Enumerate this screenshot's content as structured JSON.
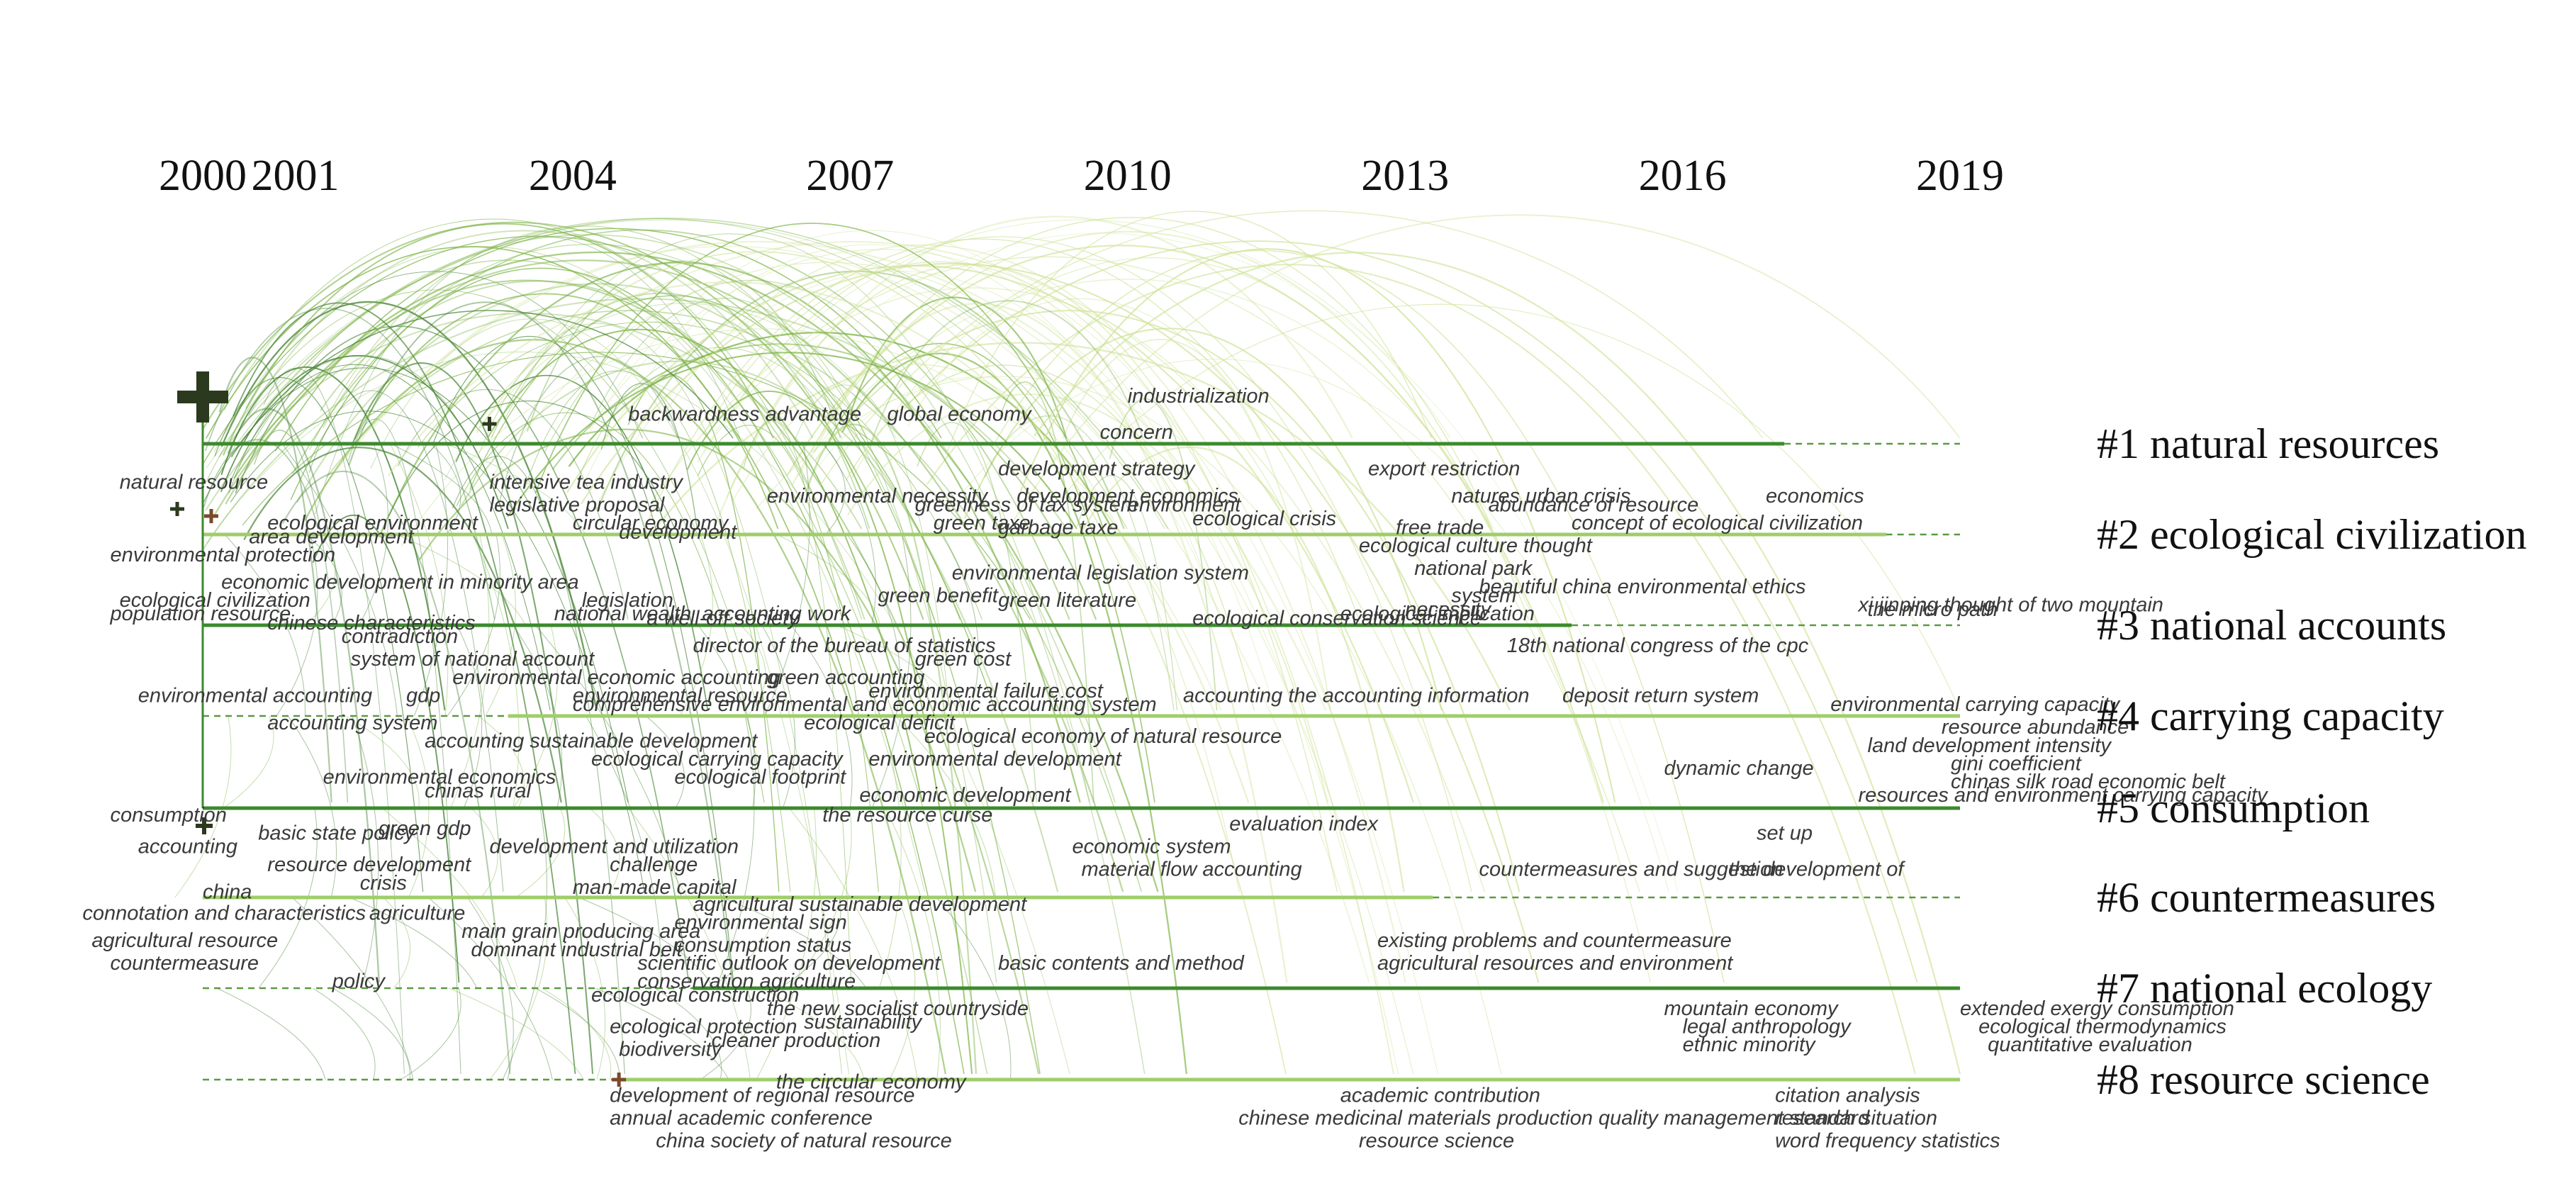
{
  "chart_data": {
    "type": "timeline",
    "years": [
      2000,
      2001,
      2004,
      2007,
      2010,
      2013,
      2016,
      2019
    ],
    "x_range": [
      2000,
      2019
    ],
    "colors": {
      "arc_dark": "#3f7f2c",
      "arc_mid": "#7fb54a",
      "arc_light": "#cfe39a",
      "lane_dark": "#3c8a2e",
      "lane_light": "#9fce6a",
      "dashed": "#5a9a42",
      "node_dark": "#2b3a1e",
      "node_brown": "#7a4a2a"
    },
    "clusters": [
      {
        "id": 1,
        "label": "#1 natural resources",
        "start": 2000,
        "end": 2017.1,
        "extend_to": 2019
      },
      {
        "id": 2,
        "label": "#2 ecological civilization",
        "start": 2000,
        "end": 2018.2,
        "extend_to": 2019
      },
      {
        "id": 3,
        "label": "#3 national accounts",
        "start": 2000,
        "end": 2014.8,
        "extend_to": 2019
      },
      {
        "id": 4,
        "label": "#4 carrying capacity",
        "start": 2003.3,
        "end": 2019,
        "extend_to": 2019,
        "dashed_before": true
      },
      {
        "id": 5,
        "label": "#5 consumption",
        "start": 2000,
        "end": 2019,
        "extend_to": 2019
      },
      {
        "id": 6,
        "label": "#6 countermeasures",
        "start": 2000,
        "end": 2013.3,
        "extend_to": 2019
      },
      {
        "id": 7,
        "label": "#7 national ecology",
        "start": 2005.3,
        "end": 2019,
        "extend_to": 2019,
        "dashed_before": true
      },
      {
        "id": 8,
        "label": "#8 resource science",
        "start": 2004.5,
        "end": 2019,
        "extend_to": 2019,
        "dashed_before": true
      }
    ],
    "keywords": [
      {
        "text": "backwardness advantage",
        "year": 2004.6,
        "lane": 1,
        "dy": -0.6
      },
      {
        "text": "global economy",
        "year": 2007.4,
        "lane": 1,
        "dy": -0.6
      },
      {
        "text": "industrialization",
        "year": 2010.0,
        "lane": 1,
        "dy": -1.0
      },
      {
        "text": "concern",
        "year": 2009.7,
        "lane": 1,
        "dy": -0.2
      },
      {
        "text": "natural resource",
        "year": 1999.1,
        "lane": 1,
        "dy": 0.9
      },
      {
        "text": "intensive tea industry",
        "year": 2003.1,
        "lane": 1,
        "dy": 0.9
      },
      {
        "text": "development strategy",
        "year": 2008.6,
        "lane": 1,
        "dy": 0.6
      },
      {
        "text": "export restriction",
        "year": 2012.6,
        "lane": 1,
        "dy": 0.6
      },
      {
        "text": "legislative proposal",
        "year": 2003.1,
        "lane": 1,
        "dy": 1.4
      },
      {
        "text": "greenness of tax system",
        "year": 2007.7,
        "lane": 1,
        "dy": 1.4
      },
      {
        "text": "environment",
        "year": 2010.0,
        "lane": 1,
        "dy": 1.4
      },
      {
        "text": "abundance of resource",
        "year": 2013.9,
        "lane": 1,
        "dy": 1.4
      },
      {
        "text": "ecological environment",
        "year": 2000.7,
        "lane": 1,
        "dy": 1.8
      },
      {
        "text": "development",
        "year": 2004.5,
        "lane": 1,
        "dy": 2.0
      },
      {
        "text": "garbage taxe",
        "year": 2008.6,
        "lane": 1,
        "dy": 1.9
      },
      {
        "text": "free trade",
        "year": 2012.9,
        "lane": 1,
        "dy": 1.9
      },
      {
        "text": "environmental necessity",
        "year": 2006.1,
        "lane": 2,
        "dy": -0.8
      },
      {
        "text": "development economics",
        "year": 2008.8,
        "lane": 2,
        "dy": -0.8
      },
      {
        "text": "natures urban crisis",
        "year": 2013.5,
        "lane": 2,
        "dy": -0.8
      },
      {
        "text": "economics",
        "year": 2016.9,
        "lane": 2,
        "dy": -0.8
      },
      {
        "text": "circular economy",
        "year": 2004.0,
        "lane": 2,
        "dy": -0.2
      },
      {
        "text": "green taxe",
        "year": 2007.9,
        "lane": 2,
        "dy": -0.2
      },
      {
        "text": "ecological crisis",
        "year": 2010.7,
        "lane": 2,
        "dy": -0.3
      },
      {
        "text": "concept of ecological civilization",
        "year": 2014.8,
        "lane": 2,
        "dy": -0.2
      },
      {
        "text": "area development",
        "year": 2000.5,
        "lane": 2,
        "dy": 0.1
      },
      {
        "text": "ecological culture thought",
        "year": 2012.5,
        "lane": 2,
        "dy": 0.3
      },
      {
        "text": "environmental protection",
        "year": 1999.0,
        "lane": 2,
        "dy": 0.5
      },
      {
        "text": "environmental legislation system",
        "year": 2008.1,
        "lane": 2,
        "dy": 0.9
      },
      {
        "text": "national park",
        "year": 2013.1,
        "lane": 2,
        "dy": 0.8
      },
      {
        "text": "economic development in minority area",
        "year": 2000.2,
        "lane": 2,
        "dy": 1.1
      },
      {
        "text": "beautiful china environmental ethics",
        "year": 2013.8,
        "lane": 2,
        "dy": 1.2
      },
      {
        "text": "ecological civilization",
        "year": 1999.1,
        "lane": 2,
        "dy": 1.5
      },
      {
        "text": "legislation",
        "year": 2004.1,
        "lane": 2,
        "dy": 1.5
      },
      {
        "text": "green literature",
        "year": 2008.6,
        "lane": 2,
        "dy": 1.5
      },
      {
        "text": "necessity",
        "year": 2013.0,
        "lane": 2,
        "dy": 1.7
      },
      {
        "text": "xi jinping thought of two mountain",
        "year": 2017.9,
        "lane": 2,
        "dy": 1.6
      },
      {
        "text": "chinese characteristics",
        "year": 2000.7,
        "lane": 2,
        "dy": 2.0
      },
      {
        "text": "a well-off society",
        "year": 2004.8,
        "lane": 2,
        "dy": 1.9
      },
      {
        "text": "ecological conservation science",
        "year": 2010.7,
        "lane": 2,
        "dy": 1.9
      },
      {
        "text": "green benefit",
        "year": 2007.3,
        "lane": 3,
        "dy": -0.6
      },
      {
        "text": "system",
        "year": 2013.5,
        "lane": 3,
        "dy": -0.6
      },
      {
        "text": "population resource",
        "year": 1999.0,
        "lane": 3,
        "dy": -0.2
      },
      {
        "text": "national wealth",
        "year": 2003.8,
        "lane": 3,
        "dy": -0.2
      },
      {
        "text": "accounting work",
        "year": 2005.4,
        "lane": 3,
        "dy": -0.2
      },
      {
        "text": "ecological implication",
        "year": 2012.3,
        "lane": 3,
        "dy": -0.2
      },
      {
        "text": "the micro path",
        "year": 2018.0,
        "lane": 3,
        "dy": -0.3
      },
      {
        "text": "contradiction",
        "year": 2001.5,
        "lane": 3,
        "dy": 0.3
      },
      {
        "text": "director of the bureau of statistics",
        "year": 2005.3,
        "lane": 3,
        "dy": 0.5
      },
      {
        "text": "18th national congress of the cpc",
        "year": 2014.1,
        "lane": 3,
        "dy": 0.5
      },
      {
        "text": "system of national account",
        "year": 2001.6,
        "lane": 3,
        "dy": 0.8
      },
      {
        "text": "green cost",
        "year": 2007.7,
        "lane": 3,
        "dy": 0.8
      },
      {
        "text": "environmental economic accounting",
        "year": 2002.7,
        "lane": 3,
        "dy": 1.2
      },
      {
        "text": "green accounting",
        "year": 2006.1,
        "lane": 3,
        "dy": 1.2
      },
      {
        "text": "environmental accounting",
        "year": 1999.3,
        "lane": 3,
        "dy": 1.6
      },
      {
        "text": "gdp",
        "year": 2002.2,
        "lane": 3,
        "dy": 1.6
      },
      {
        "text": "environmental resource",
        "year": 2004.0,
        "lane": 3,
        "dy": 1.6
      },
      {
        "text": "environmental failure cost",
        "year": 2007.2,
        "lane": 3,
        "dy": 1.5
      },
      {
        "text": "comprehensive environmental and economic accounting system",
        "year": 2004.0,
        "lane": 4,
        "dy": -0.2
      },
      {
        "text": "accounting the accounting information",
        "year": 2010.6,
        "lane": 4,
        "dy": -0.4
      },
      {
        "text": "deposit return system",
        "year": 2014.7,
        "lane": 4,
        "dy": -0.4
      },
      {
        "text": "environmental carrying capacity",
        "year": 2017.6,
        "lane": 4,
        "dy": -0.2
      },
      {
        "text": "accounting system",
        "year": 2000.7,
        "lane": 4,
        "dy": 0.2
      },
      {
        "text": "ecological deficit",
        "year": 2006.5,
        "lane": 4,
        "dy": 0.2
      },
      {
        "text": "resource abundance",
        "year": 2018.8,
        "lane": 4,
        "dy": 0.3
      },
      {
        "text": "accounting sustainable development",
        "year": 2002.4,
        "lane": 4,
        "dy": 0.6
      },
      {
        "text": "ecological economy of natural resource",
        "year": 2007.8,
        "lane": 4,
        "dy": 0.5
      },
      {
        "text": "land development intensity",
        "year": 2018.0,
        "lane": 4,
        "dy": 0.7
      },
      {
        "text": "ecological carrying capacity",
        "year": 2004.2,
        "lane": 4,
        "dy": 1.0
      },
      {
        "text": "environmental development",
        "year": 2007.2,
        "lane": 4,
        "dy": 1.0
      },
      {
        "text": "gini coefficient",
        "year": 2018.9,
        "lane": 4,
        "dy": 1.1
      },
      {
        "text": "environmental economics",
        "year": 2001.3,
        "lane": 4,
        "dy": 1.4
      },
      {
        "text": "ecological footprint",
        "year": 2005.1,
        "lane": 4,
        "dy": 1.4
      },
      {
        "text": "dynamic change",
        "year": 2015.8,
        "lane": 4,
        "dy": 1.2
      },
      {
        "text": "chinas silk road economic belt",
        "year": 2018.9,
        "lane": 4,
        "dy": 1.5
      },
      {
        "text": "chinas rural",
        "year": 2002.4,
        "lane": 4,
        "dy": 1.7
      },
      {
        "text": "economic development",
        "year": 2007.1,
        "lane": 4,
        "dy": 1.8
      },
      {
        "text": "resources and environment carrying capacity",
        "year": 2017.9,
        "lane": 4,
        "dy": 1.8
      },
      {
        "text": "consumption",
        "year": 1999.0,
        "lane": 5,
        "dy": 0.2
      },
      {
        "text": "the resource curse",
        "year": 2006.7,
        "lane": 5,
        "dy": 0.2
      },
      {
        "text": "evaluation index",
        "year": 2011.1,
        "lane": 5,
        "dy": 0.4
      },
      {
        "text": "basic state policy",
        "year": 2000.6,
        "lane": 5,
        "dy": 0.6
      },
      {
        "text": "green gdp",
        "year": 2001.9,
        "lane": 5,
        "dy": 0.5
      },
      {
        "text": "set up",
        "year": 2016.8,
        "lane": 5,
        "dy": 0.6
      },
      {
        "text": "accounting",
        "year": 1999.3,
        "lane": 5,
        "dy": 0.9
      },
      {
        "text": "development and utilization",
        "year": 2003.1,
        "lane": 5,
        "dy": 0.9
      },
      {
        "text": "economic system",
        "year": 2009.4,
        "lane": 5,
        "dy": 0.9
      },
      {
        "text": "resource development",
        "year": 2000.7,
        "lane": 5,
        "dy": 1.3
      },
      {
        "text": "challenge",
        "year": 2004.4,
        "lane": 5,
        "dy": 1.3
      },
      {
        "text": "material flow accounting",
        "year": 2009.5,
        "lane": 5,
        "dy": 1.4
      },
      {
        "text": "countermeasures and suggestion",
        "year": 2013.8,
        "lane": 5,
        "dy": 1.4
      },
      {
        "text": "the development of",
        "year": 2016.5,
        "lane": 5,
        "dy": 1.4
      },
      {
        "text": "crisis",
        "year": 2001.7,
        "lane": 5,
        "dy": 1.7
      },
      {
        "text": "man-made capital",
        "year": 2004.0,
        "lane": 5,
        "dy": 1.8
      },
      {
        "text": "china",
        "year": 2000.0,
        "lane": 5,
        "dy": 1.9
      },
      {
        "text": "agricultural sustainable development",
        "year": 2005.3,
        "lane": 6,
        "dy": 0.2
      },
      {
        "text": "connotation and characteristics",
        "year": 1998.7,
        "lane": 6,
        "dy": 0.4
      },
      {
        "text": "agriculture",
        "year": 2001.8,
        "lane": 6,
        "dy": 0.4
      },
      {
        "text": "environmental sign",
        "year": 2005.1,
        "lane": 6,
        "dy": 0.6
      },
      {
        "text": "main grain producing area",
        "year": 2002.8,
        "lane": 6,
        "dy": 0.8
      },
      {
        "text": "agricultural resource",
        "year": 1998.8,
        "lane": 6,
        "dy": 1.0
      },
      {
        "text": "existing problems and countermeasure",
        "year": 2012.7,
        "lane": 6,
        "dy": 1.0
      },
      {
        "text": "consumption status",
        "year": 2005.1,
        "lane": 6,
        "dy": 1.1
      },
      {
        "text": "dominant industrial belt",
        "year": 2002.9,
        "lane": 6,
        "dy": 1.2
      },
      {
        "text": "countermeasure",
        "year": 1999.0,
        "lane": 6,
        "dy": 1.5
      },
      {
        "text": "scientific outlook on development",
        "year": 2004.7,
        "lane": 6,
        "dy": 1.5
      },
      {
        "text": "basic contents and method",
        "year": 2008.6,
        "lane": 6,
        "dy": 1.5
      },
      {
        "text": "agricultural resources and environment",
        "year": 2012.7,
        "lane": 6,
        "dy": 1.5
      },
      {
        "text": "policy",
        "year": 2001.4,
        "lane": 6,
        "dy": 1.9
      },
      {
        "text": "conservation agriculture",
        "year": 2004.7,
        "lane": 6,
        "dy": 1.9
      },
      {
        "text": "ecological construction",
        "year": 2004.2,
        "lane": 7,
        "dy": 0.2
      },
      {
        "text": "the new socialist countryside",
        "year": 2006.1,
        "lane": 7,
        "dy": 0.5
      },
      {
        "text": "mountain economy",
        "year": 2015.8,
        "lane": 7,
        "dy": 0.5
      },
      {
        "text": "extended exergy consumption",
        "year": 2019.0,
        "lane": 7,
        "dy": 0.5
      },
      {
        "text": "ecological protection",
        "year": 2004.4,
        "lane": 7,
        "dy": 0.9
      },
      {
        "text": "sustainability",
        "year": 2006.5,
        "lane": 7,
        "dy": 0.8
      },
      {
        "text": "legal anthropology",
        "year": 2016.0,
        "lane": 7,
        "dy": 0.9
      },
      {
        "text": "ecological thermodynamics",
        "year": 2019.2,
        "lane": 7,
        "dy": 0.9
      },
      {
        "text": "cleaner production",
        "year": 2005.5,
        "lane": 7,
        "dy": 1.2
      },
      {
        "text": "biodiversity",
        "year": 2004.5,
        "lane": 7,
        "dy": 1.4
      },
      {
        "text": "ethnic minority",
        "year": 2016.0,
        "lane": 7,
        "dy": 1.3
      },
      {
        "text": "quantitative evaluation",
        "year": 2019.3,
        "lane": 7,
        "dy": 1.3
      },
      {
        "text": "the circular economy",
        "year": 2006.2,
        "lane": 8,
        "dy": 0.1
      },
      {
        "text": "development of regional resource",
        "year": 2004.4,
        "lane": 8,
        "dy": 0.4
      },
      {
        "text": "academic contribution",
        "year": 2012.3,
        "lane": 8,
        "dy": 0.4
      },
      {
        "text": "citation analysis",
        "year": 2017.0,
        "lane": 8,
        "dy": 0.4
      },
      {
        "text": "annual academic conference",
        "year": 2004.4,
        "lane": 8,
        "dy": 0.9
      },
      {
        "text": "chinese medicinal materials production quality management standard",
        "year": 2011.2,
        "lane": 8,
        "dy": 0.9
      },
      {
        "text": "research situation",
        "year": 2017.0,
        "lane": 8,
        "dy": 0.9
      },
      {
        "text": "china society of natural resource",
        "year": 2004.9,
        "lane": 8,
        "dy": 1.4
      },
      {
        "text": "resource science",
        "year": 2012.5,
        "lane": 8,
        "dy": 1.4
      },
      {
        "text": "word frequency statistics",
        "year": 2017.0,
        "lane": 8,
        "dy": 1.4
      }
    ]
  }
}
